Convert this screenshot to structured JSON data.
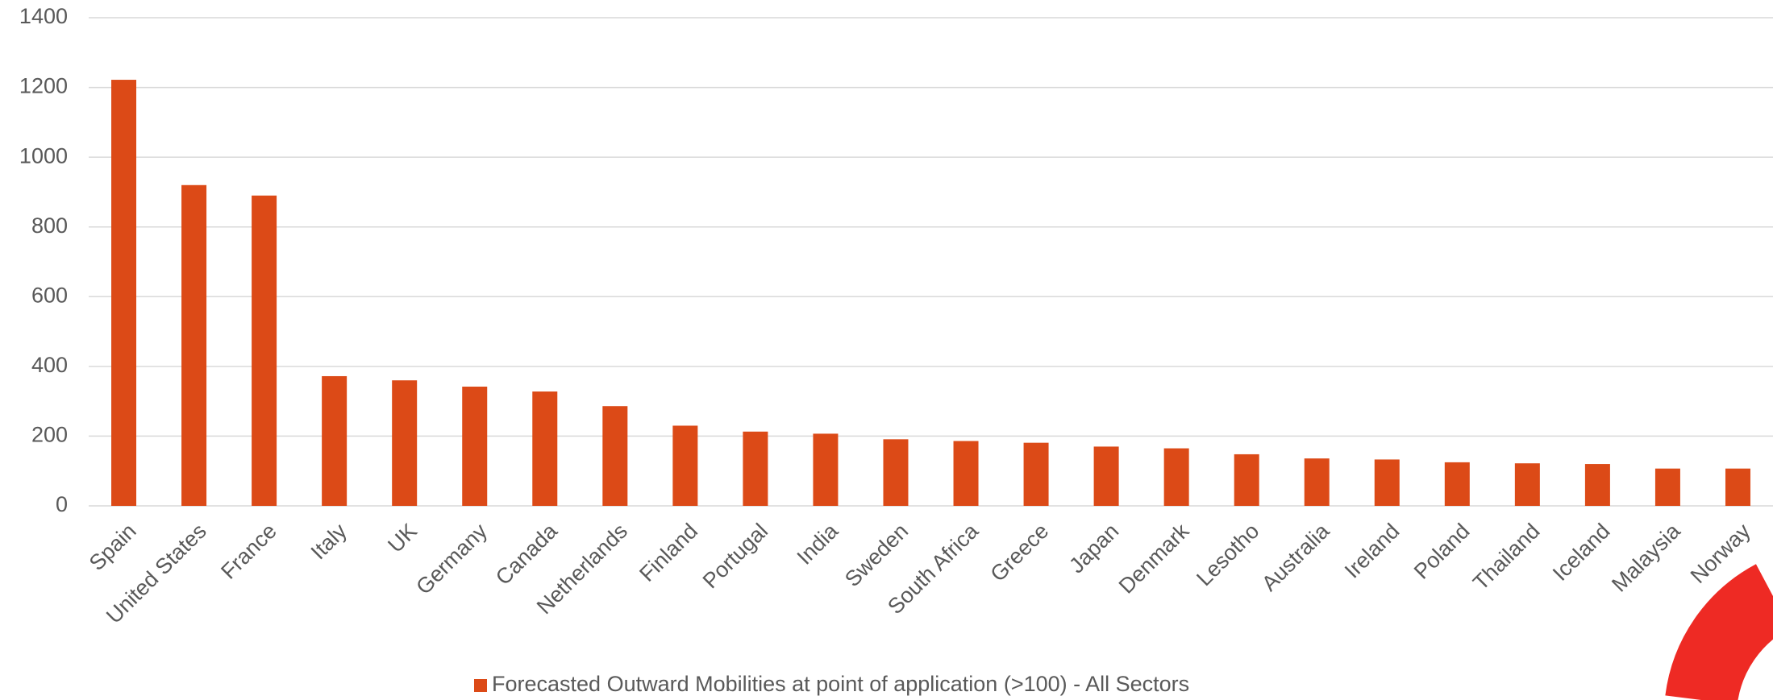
{
  "chart_data": {
    "type": "bar",
    "categories": [
      "Spain",
      "United States",
      "France",
      "Italy",
      "UK",
      "Germany",
      "Canada",
      "Netherlands",
      "Finland",
      "Portugal",
      "India",
      "Sweden",
      "South Africa",
      "Greece",
      "Japan",
      "Denmark",
      "Lesotho",
      "Australia",
      "Ireland",
      "Poland",
      "Thailand",
      "Iceland",
      "Malaysia",
      "Norway"
    ],
    "series": [
      {
        "name": "Forecasted Outward Mobilities at point of application (>100) - All Sectors",
        "color": "#dc4a17",
        "values": [
          1222,
          920,
          890,
          372,
          360,
          342,
          328,
          286,
          230,
          213,
          207,
          191,
          186,
          181,
          170,
          165,
          148,
          136,
          133,
          125,
          122,
          120,
          107,
          107
        ]
      }
    ],
    "ylim": [
      0,
      1400
    ],
    "yticks": [
      0,
      200,
      400,
      600,
      800,
      1000,
      1200,
      1400
    ],
    "grid": true,
    "legend": "bottom"
  }
}
